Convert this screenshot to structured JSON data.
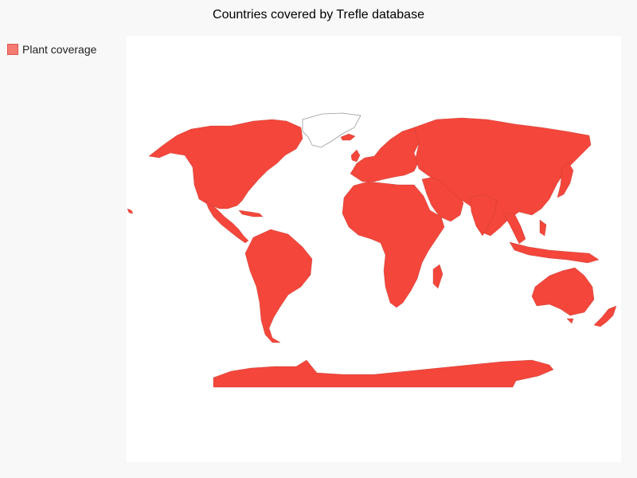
{
  "title": "Countries covered by Trefle database",
  "legend": {
    "label": "Plant coverage",
    "color": "#f4463b"
  },
  "map": {
    "type": "choropleth",
    "coverage_color": "#f4463b",
    "uncovered_color": "#ffffff",
    "uncovered_regions": [
      "Greenland"
    ]
  }
}
